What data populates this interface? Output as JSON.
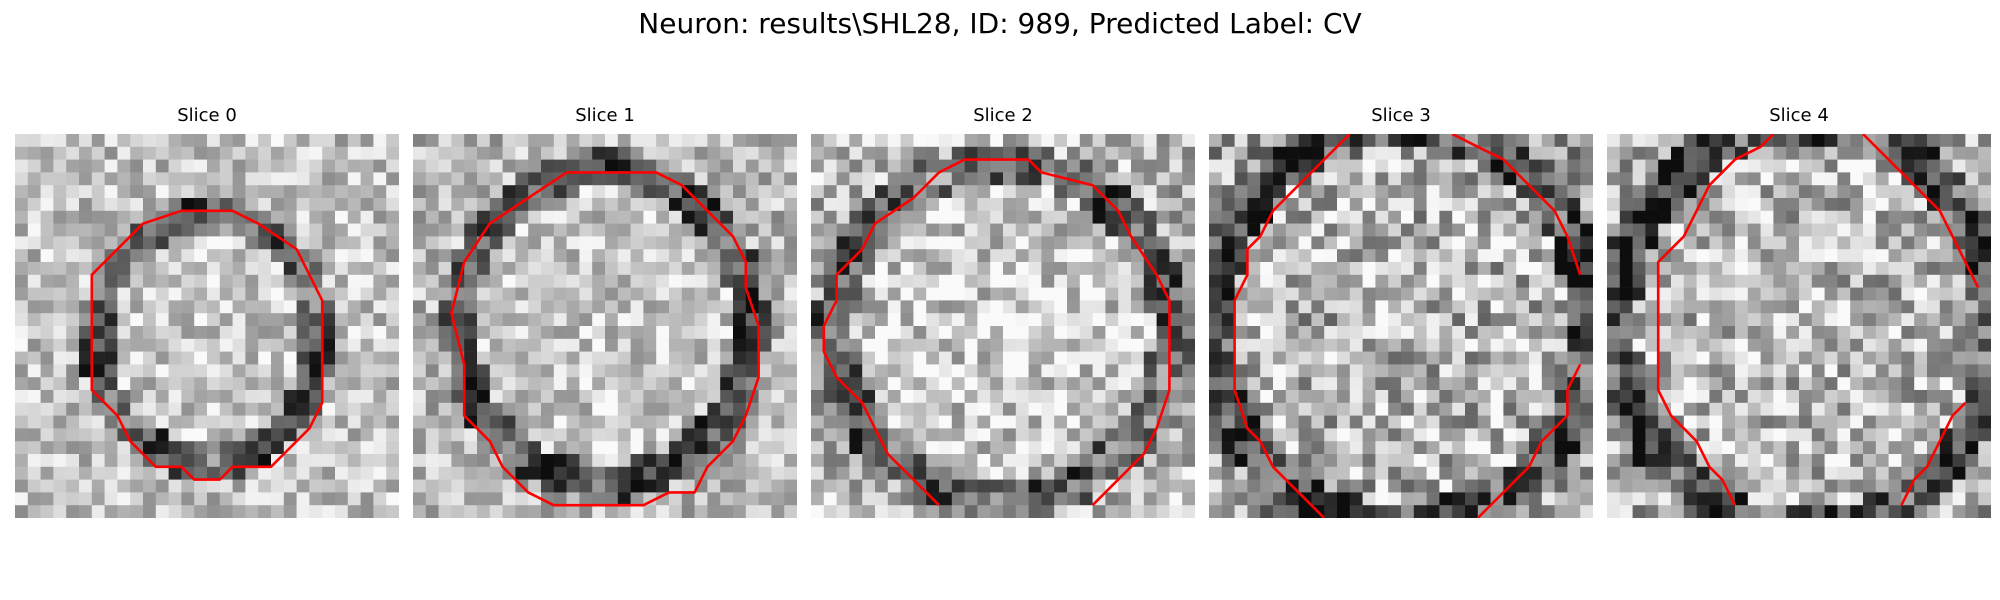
{
  "figure": {
    "title": "Neuron: results\\SHL28, ID: 989, Predicted Label: CV"
  },
  "slices": [
    {
      "label": "Slice 0"
    },
    {
      "label": "Slice 1"
    },
    {
      "label": "Slice 2"
    },
    {
      "label": "Slice 3"
    },
    {
      "label": "Slice 4"
    }
  ],
  "colors": {
    "contour": "#ff0000",
    "background": "#ffffff"
  }
}
